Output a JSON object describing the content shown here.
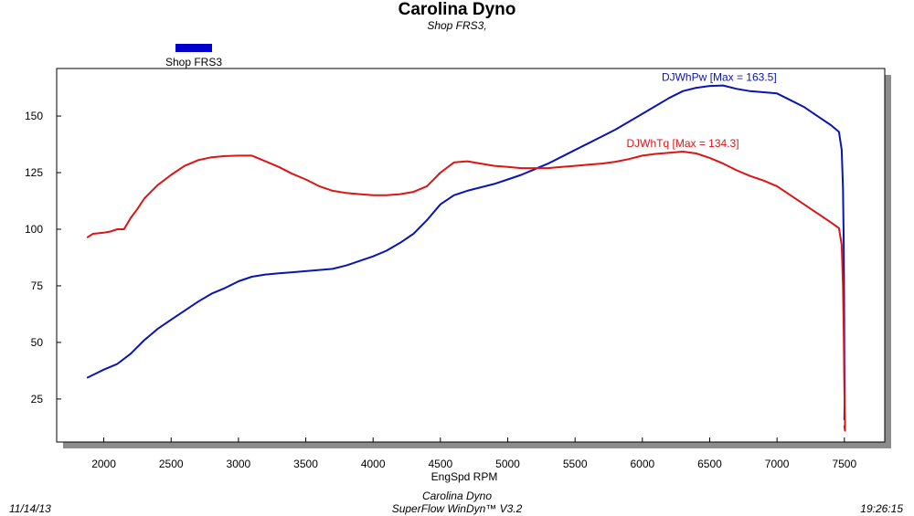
{
  "header": {
    "title": "Carolina Dyno",
    "subtitle": "Shop FRS3,"
  },
  "footer": {
    "line1": "Carolina Dyno",
    "line2": "SuperFlow WinDyn™ V3.2",
    "date": "11/14/13",
    "time": "19:26:15"
  },
  "colors": {
    "power": "#0a14b4",
    "torque": "#dc1414",
    "shadow": "#8c8c8c",
    "legend_swatch": "#0000cc"
  },
  "chart_data": {
    "type": "line",
    "title": "Carolina Dyno",
    "subtitle": "Shop FRS3,",
    "xlabel": "EngSpd RPM",
    "ylabel": "",
    "xlim": [
      1650,
      7800
    ],
    "ylim": [
      6,
      171
    ],
    "xticks": [
      2000,
      2500,
      3000,
      3500,
      4000,
      4500,
      5000,
      5500,
      6000,
      6500,
      7000,
      7500
    ],
    "yticks": [
      25,
      50,
      75,
      100,
      125,
      150
    ],
    "legend": {
      "position": "top-left",
      "entries": [
        "Shop FRS3"
      ]
    },
    "series": [
      {
        "name": "DJWhPw",
        "label": "DJWhPw [Max = 163.5]",
        "color": "#0a14b4",
        "points": [
          [
            1880,
            34.5
          ],
          [
            1950,
            36.5
          ],
          [
            2000,
            38
          ],
          [
            2100,
            40.5
          ],
          [
            2200,
            45
          ],
          [
            2300,
            51
          ],
          [
            2400,
            56
          ],
          [
            2500,
            60
          ],
          [
            2600,
            64
          ],
          [
            2700,
            68
          ],
          [
            2800,
            71.5
          ],
          [
            2900,
            74
          ],
          [
            3000,
            77
          ],
          [
            3100,
            79
          ],
          [
            3200,
            80
          ],
          [
            3300,
            80.5
          ],
          [
            3400,
            81
          ],
          [
            3500,
            81.5
          ],
          [
            3600,
            82
          ],
          [
            3700,
            82.5
          ],
          [
            3800,
            84
          ],
          [
            3900,
            86
          ],
          [
            4000,
            88
          ],
          [
            4100,
            90.5
          ],
          [
            4200,
            94
          ],
          [
            4300,
            98
          ],
          [
            4400,
            104
          ],
          [
            4500,
            111
          ],
          [
            4600,
            115
          ],
          [
            4700,
            117
          ],
          [
            4800,
            118.5
          ],
          [
            4900,
            120
          ],
          [
            5000,
            122
          ],
          [
            5100,
            124
          ],
          [
            5200,
            126.5
          ],
          [
            5300,
            129
          ],
          [
            5400,
            132
          ],
          [
            5500,
            135
          ],
          [
            5600,
            138
          ],
          [
            5700,
            141
          ],
          [
            5800,
            144
          ],
          [
            5900,
            147.5
          ],
          [
            6000,
            151
          ],
          [
            6100,
            154.5
          ],
          [
            6200,
            158
          ],
          [
            6300,
            161
          ],
          [
            6400,
            162.5
          ],
          [
            6500,
            163.3
          ],
          [
            6600,
            163.5
          ],
          [
            6700,
            162
          ],
          [
            6800,
            161
          ],
          [
            6900,
            160.5
          ],
          [
            7000,
            160
          ],
          [
            7100,
            157
          ],
          [
            7200,
            154
          ],
          [
            7300,
            150
          ],
          [
            7400,
            146
          ],
          [
            7460,
            143
          ],
          [
            7480,
            135
          ],
          [
            7490,
            118
          ],
          [
            7495,
            95
          ],
          [
            7498,
            70
          ],
          [
            7500,
            45
          ],
          [
            7502,
            25
          ],
          [
            7500,
            16
          ]
        ]
      },
      {
        "name": "DJWhTq",
        "label": "DJWhTq [Max = 134.3]",
        "color": "#dc1414",
        "points": [
          [
            1880,
            96.5
          ],
          [
            1920,
            98
          ],
          [
            2000,
            98.5
          ],
          [
            2050,
            99
          ],
          [
            2100,
            100
          ],
          [
            2150,
            100
          ],
          [
            2200,
            105
          ],
          [
            2250,
            109
          ],
          [
            2300,
            113.5
          ],
          [
            2350,
            116.5
          ],
          [
            2400,
            119.5
          ],
          [
            2500,
            124
          ],
          [
            2600,
            128
          ],
          [
            2700,
            130.5
          ],
          [
            2800,
            131.8
          ],
          [
            2900,
            132.3
          ],
          [
            3000,
            132.5
          ],
          [
            3100,
            132.5
          ],
          [
            3200,
            130
          ],
          [
            3300,
            127.5
          ],
          [
            3400,
            124.5
          ],
          [
            3500,
            122
          ],
          [
            3600,
            119
          ],
          [
            3700,
            117
          ],
          [
            3800,
            116
          ],
          [
            3900,
            115.5
          ],
          [
            4000,
            115
          ],
          [
            4100,
            115
          ],
          [
            4200,
            115.5
          ],
          [
            4300,
            116.5
          ],
          [
            4400,
            119
          ],
          [
            4500,
            125
          ],
          [
            4600,
            129.5
          ],
          [
            4700,
            130
          ],
          [
            4800,
            129
          ],
          [
            4900,
            128
          ],
          [
            5000,
            127.5
          ],
          [
            5100,
            127
          ],
          [
            5200,
            127
          ],
          [
            5300,
            127
          ],
          [
            5400,
            127.5
          ],
          [
            5500,
            128
          ],
          [
            5600,
            128.5
          ],
          [
            5700,
            129
          ],
          [
            5800,
            129.8
          ],
          [
            5900,
            131
          ],
          [
            6000,
            132.5
          ],
          [
            6100,
            133.3
          ],
          [
            6200,
            133.8
          ],
          [
            6300,
            134.3
          ],
          [
            6400,
            133.5
          ],
          [
            6500,
            131.5
          ],
          [
            6600,
            129
          ],
          [
            6700,
            126
          ],
          [
            6800,
            123.5
          ],
          [
            6900,
            121.5
          ],
          [
            7000,
            119
          ],
          [
            7100,
            115
          ],
          [
            7200,
            111
          ],
          [
            7300,
            107
          ],
          [
            7400,
            103
          ],
          [
            7460,
            100.5
          ],
          [
            7480,
            93
          ],
          [
            7490,
            75
          ],
          [
            7495,
            55
          ],
          [
            7500,
            30
          ],
          [
            7505,
            15
          ],
          [
            7505,
            11
          ],
          [
            7500,
            13
          ]
        ]
      }
    ],
    "annotations": [
      {
        "series": "DJWhPw",
        "text": "DJWhPw [Max = 163.5]",
        "anchor": [
          6570,
          163.5
        ]
      },
      {
        "series": "DJWhTq",
        "text": "DJWhTq [Max = 134.3]",
        "anchor": [
          6300,
          134.3
        ]
      }
    ]
  }
}
